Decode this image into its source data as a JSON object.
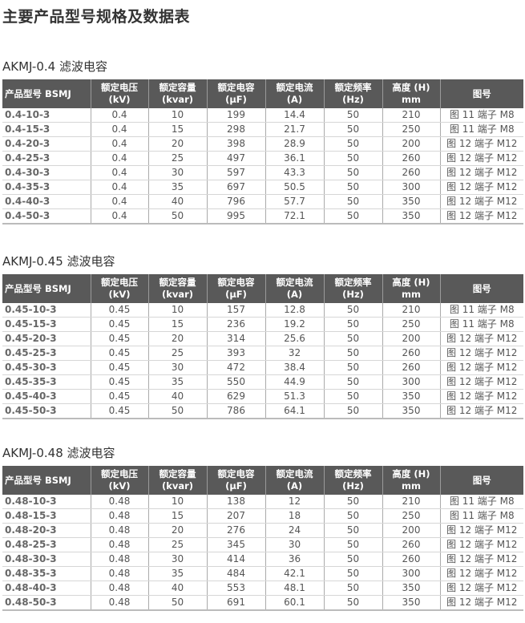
{
  "page_title": "主要产品型号规格及数据表",
  "columns": [
    "产品型号 BSMJ",
    "额定电压\n(kV)",
    "额定容量\n(kvar)",
    "额定电容\n(µF)",
    "额定电流\n(A)",
    "额定频率\n(Hz)",
    "高度 (H)\nmm",
    "图号"
  ],
  "tables": [
    {
      "title": "AKMJ-0.4 滤波电容",
      "rows": [
        [
          "0.4-10-3",
          "0.4",
          "10",
          "199",
          "14.4",
          "50",
          "210",
          "图 11 端子 M8"
        ],
        [
          "0.4-15-3",
          "0.4",
          "15",
          "298",
          "21.7",
          "50",
          "250",
          "图 11 端子 M8"
        ],
        [
          "0.4-20-3",
          "0.4",
          "20",
          "398",
          "28.9",
          "50",
          "200",
          "图 12 端子 M12"
        ],
        [
          "0.4-25-3",
          "0.4",
          "25",
          "497",
          "36.1",
          "50",
          "260",
          "图 12 端子 M12"
        ],
        [
          "0.4-30-3",
          "0.4",
          "30",
          "597",
          "43.3",
          "50",
          "260",
          "图 12 端子 M12"
        ],
        [
          "0.4-35-3",
          "0.4",
          "35",
          "697",
          "50.5",
          "50",
          "300",
          "图 12 端子 M12"
        ],
        [
          "0.4-40-3",
          "0.4",
          "40",
          "796",
          "57.7",
          "50",
          "350",
          "图 12 端子 M12"
        ],
        [
          "0.4-50-3",
          "0.4",
          "50",
          "995",
          "72.1",
          "50",
          "350",
          "图 12 端子 M12"
        ]
      ]
    },
    {
      "title": "AKMJ-0.45 滤波电容",
      "rows": [
        [
          "0.45-10-3",
          "0.45",
          "10",
          "157",
          "12.8",
          "50",
          "210",
          "图 11 端子 M8"
        ],
        [
          "0.45-15-3",
          "0.45",
          "15",
          "236",
          "19.2",
          "50",
          "250",
          "图 11 端子 M8"
        ],
        [
          "0.45-20-3",
          "0.45",
          "20",
          "314",
          "25.6",
          "50",
          "200",
          "图 12 端子 M12"
        ],
        [
          "0.45-25-3",
          "0.45",
          "25",
          "393",
          "32",
          "50",
          "260",
          "图 12 端子 M12"
        ],
        [
          "0.45-30-3",
          "0.45",
          "30",
          "472",
          "38.4",
          "50",
          "260",
          "图 12 端子 M12"
        ],
        [
          "0.45-35-3",
          "0.45",
          "35",
          "550",
          "44.9",
          "50",
          "300",
          "图 12 端子 M12"
        ],
        [
          "0.45-40-3",
          "0.45",
          "40",
          "629",
          "51.3",
          "50",
          "350",
          "图 12 端子 M12"
        ],
        [
          "0.45-50-3",
          "0.45",
          "50",
          "786",
          "64.1",
          "50",
          "350",
          "图 12 端子 M12"
        ]
      ]
    },
    {
      "title": "AKMJ-0.48 滤波电容",
      "rows": [
        [
          "0.48-10-3",
          "0.48",
          "10",
          "138",
          "12",
          "50",
          "210",
          "图 11 端子 M8"
        ],
        [
          "0.48-15-3",
          "0.48",
          "15",
          "207",
          "18",
          "50",
          "250",
          "图 11 端子 M8"
        ],
        [
          "0.48-20-3",
          "0.48",
          "20",
          "276",
          "24",
          "50",
          "200",
          "图 12 端子 M12"
        ],
        [
          "0.48-25-3",
          "0.48",
          "25",
          "345",
          "30",
          "50",
          "260",
          "图 12 端子 M12"
        ],
        [
          "0.48-30-3",
          "0.48",
          "30",
          "414",
          "36",
          "50",
          "260",
          "图 12 端子 M12"
        ],
        [
          "0.48-35-3",
          "0.48",
          "35",
          "484",
          "42.1",
          "50",
          "300",
          "图 12 端子 M12"
        ],
        [
          "0.48-40-3",
          "0.48",
          "40",
          "553",
          "48.1",
          "50",
          "350",
          "图 12 端子 M12"
        ],
        [
          "0.48-50-3",
          "0.48",
          "50",
          "691",
          "60.1",
          "50",
          "350",
          "图 12 端子 M12"
        ]
      ]
    }
  ]
}
